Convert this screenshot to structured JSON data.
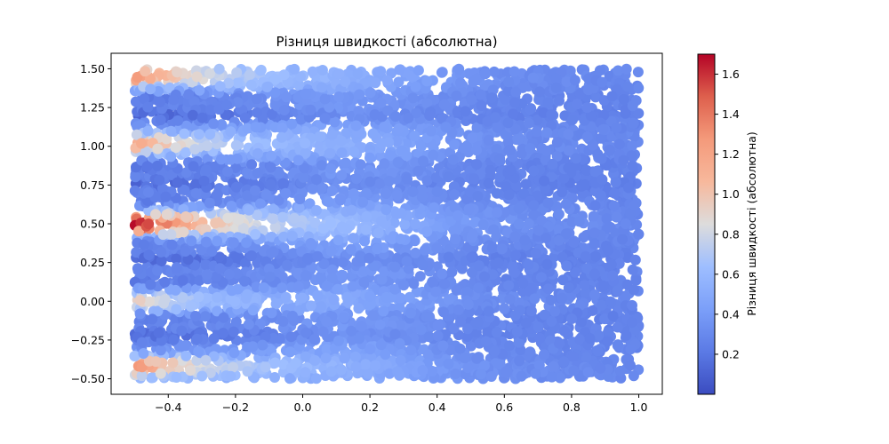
{
  "chart_data": {
    "type": "heatmap",
    "subtype": "scatter-colored",
    "title": "Різниця швидкості (абсолютна)",
    "xlabel": "",
    "ylabel": "",
    "colorbar_label": "Різниця швидкості (абсолютна)",
    "colormap": "coolwarm",
    "xlim": [
      -0.57,
      1.07
    ],
    "ylim": [
      -0.6,
      1.6
    ],
    "x_ticks": [
      -0.4,
      -0.2,
      0.0,
      0.2,
      0.4,
      0.6,
      0.8,
      1.0
    ],
    "x_tick_labels": [
      "−0.4",
      "−0.2",
      "0.0",
      "0.2",
      "0.4",
      "0.6",
      "0.8",
      "1.0"
    ],
    "y_ticks": [
      -0.5,
      -0.25,
      0.0,
      0.25,
      0.5,
      0.75,
      1.0,
      1.25,
      1.5
    ],
    "y_tick_labels": [
      "−0.50",
      "−0.25",
      "0.00",
      "0.25",
      "0.50",
      "0.75",
      "1.00",
      "1.25",
      "1.50"
    ],
    "color_range": [
      0.0,
      1.7
    ],
    "colorbar_ticks": [
      0.2,
      0.4,
      0.6,
      0.8,
      1.0,
      1.2,
      1.4,
      1.6
    ],
    "colorbar_tick_labels": [
      "0.2",
      "0.4",
      "0.6",
      "0.8",
      "1.0",
      "1.2",
      "1.4",
      "1.6"
    ],
    "data_domain": {
      "x": [
        -0.5,
        1.0
      ],
      "y": [
        -0.5,
        1.5
      ]
    },
    "wake_sources": [
      {
        "y": 0.5,
        "peak_value": 1.7
      },
      {
        "y": 1.45,
        "peak_value": 1.3
      },
      {
        "y": 1.02,
        "peak_value": 1.2
      },
      {
        "y": -0.42,
        "peak_value": 1.3
      },
      {
        "y": 0.0,
        "peak_value": 0.95
      }
    ],
    "dark_bands_y": [
      1.2,
      0.76,
      0.27,
      -0.1,
      -0.22,
      0.88,
      0.12,
      1.32,
      0.65,
      0.38,
      -0.34
    ],
    "background_value": 0.28,
    "grid": false,
    "legend": "none"
  }
}
